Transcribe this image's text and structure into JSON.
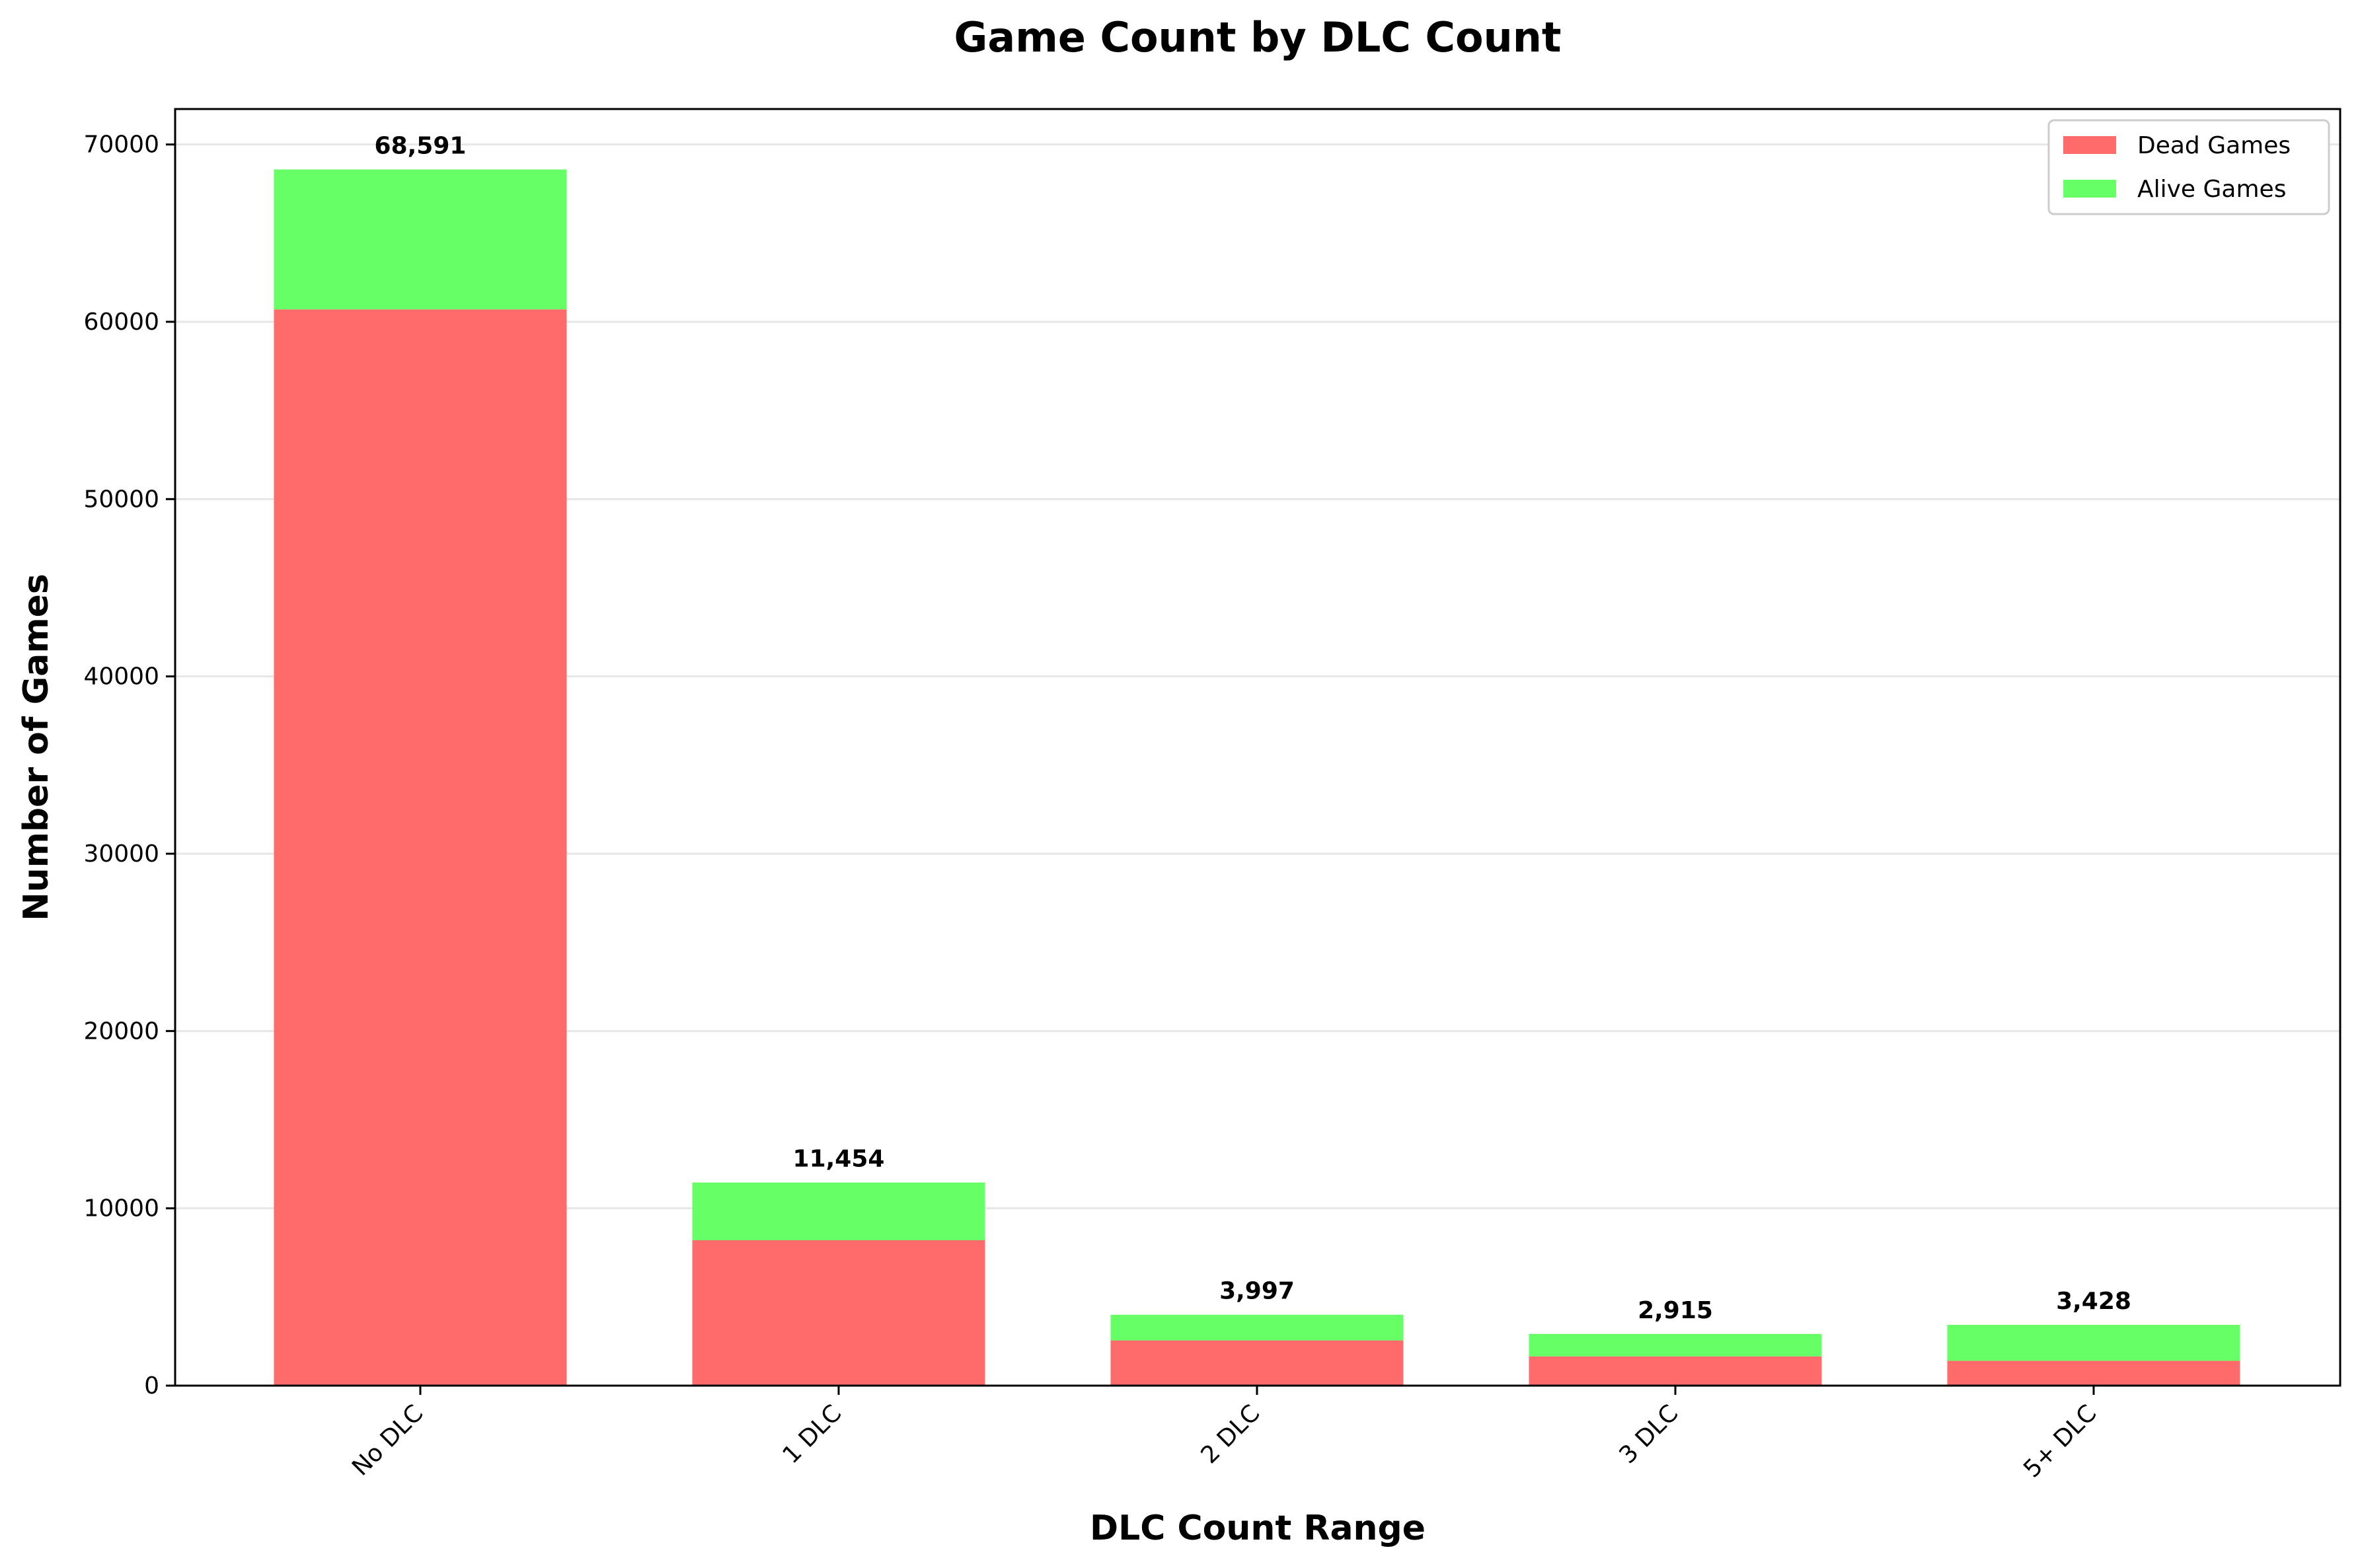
{
  "chart_data": {
    "type": "bar",
    "stacked": true,
    "title": "Game Count by DLC Count",
    "xlabel": "DLC Count Range",
    "ylabel": "Number of Games",
    "categories": [
      "No DLC",
      "1 DLC",
      "2 DLC",
      "3 DLC",
      "5+ DLC"
    ],
    "series": [
      {
        "name": "Dead Games",
        "color": "#ff6b6b",
        "values": [
          60700,
          8200,
          2550,
          1650,
          1400
        ]
      },
      {
        "name": "Alive Games",
        "color": "#66ff66",
        "values": [
          7891,
          3254,
          1447,
          1265,
          2028
        ]
      }
    ],
    "totals": [
      68591,
      11454,
      3997,
      2915,
      3428
    ],
    "total_labels": [
      "68,591",
      "11,454",
      "3,997",
      "2,915",
      "3,428"
    ],
    "yticks": [
      0,
      10000,
      20000,
      30000,
      40000,
      50000,
      60000,
      70000
    ],
    "ylim": [
      0,
      72000
    ],
    "grid": "horizontal",
    "legend_position": "top-right"
  }
}
